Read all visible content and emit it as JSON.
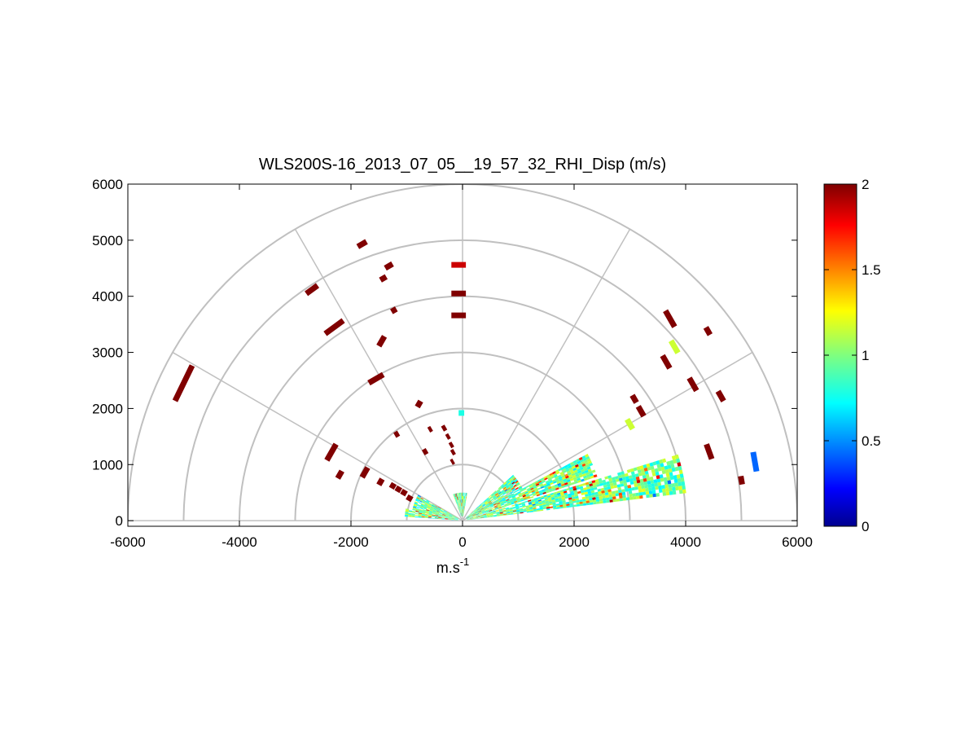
{
  "chart_data": {
    "type": "heatmap",
    "title": "WLS200S-16_2013_07_05__19_57_32_RHI_Disp (m/s)",
    "xlabel": "m.s",
    "xlabel_sup": "-1",
    "ylabel": "",
    "xlim": [
      -6000,
      6000
    ],
    "ylim": [
      -100,
      6000
    ],
    "xticks": [
      -6000,
      -4000,
      -2000,
      0,
      2000,
      4000,
      6000
    ],
    "yticks": [
      0,
      1000,
      2000,
      3000,
      4000,
      5000,
      6000
    ],
    "grid": {
      "range_rings_m": [
        1000,
        2000,
        3000,
        4000,
        5000,
        6000
      ],
      "spoke_angles_deg": [
        0,
        30,
        60,
        90,
        120,
        150,
        180
      ]
    },
    "colorbar": {
      "min": 0,
      "max": 2,
      "ticks": [
        "0",
        "0.5",
        "1",
        "1.5",
        "2"
      ],
      "colormap": "jet"
    },
    "scan": "RHI",
    "segments": [
      {
        "x": -5000,
        "y": 2450,
        "len": 700,
        "angle": 64,
        "v": 2
      },
      {
        "x": -2300,
        "y": 3450,
        "len": 400,
        "angle": 36,
        "v": 2
      },
      {
        "x": -2700,
        "y": 4120,
        "len": 250,
        "angle": 36,
        "v": 2
      },
      {
        "x": -1800,
        "y": 4930,
        "len": 180,
        "angle": 30,
        "v": 2
      },
      {
        "x": -1320,
        "y": 4540,
        "len": 150,
        "angle": 30,
        "v": 2
      },
      {
        "x": -1420,
        "y": 4320,
        "len": 120,
        "angle": 30,
        "v": 2
      },
      {
        "x": -1230,
        "y": 3750,
        "len": 100,
        "angle": 30,
        "v": 2
      },
      {
        "x": -1450,
        "y": 3200,
        "len": 200,
        "angle": 60,
        "v": 2
      },
      {
        "x": -1550,
        "y": 2530,
        "len": 300,
        "angle": 30,
        "v": 2
      },
      {
        "x": -2350,
        "y": 1220,
        "len": 330,
        "angle": 60,
        "v": 2
      },
      {
        "x": -2200,
        "y": 820,
        "len": 150,
        "angle": 60,
        "v": 2
      },
      {
        "x": -1750,
        "y": 860,
        "len": 200,
        "angle": 60,
        "v": 2
      },
      {
        "x": -1470,
        "y": 690,
        "len": 120,
        "angle": 60,
        "v": 2
      },
      {
        "x": -1250,
        "y": 620,
        "len": 100,
        "angle": 60,
        "v": 2
      },
      {
        "x": -1150,
        "y": 560,
        "len": 100,
        "angle": 60,
        "v": 2
      },
      {
        "x": -1050,
        "y": 500,
        "len": 100,
        "angle": 60,
        "v": 2
      },
      {
        "x": -950,
        "y": 400,
        "len": 100,
        "angle": 60,
        "v": 2
      },
      {
        "x": -780,
        "y": 2080,
        "len": 120,
        "angle": 60,
        "v": 2
      },
      {
        "x": -1180,
        "y": 1540,
        "len": 80,
        "angle": 30,
        "v": 2
      },
      {
        "x": -670,
        "y": 1230,
        "len": 80,
        "angle": 30,
        "v": 2
      },
      {
        "x": -580,
        "y": 1630,
        "len": 60,
        "angle": 30,
        "v": 2
      },
      {
        "x": -330,
        "y": 1650,
        "len": 70,
        "angle": 30,
        "v": 2
      },
      {
        "x": -260,
        "y": 1500,
        "len": 60,
        "angle": 30,
        "v": 2
      },
      {
        "x": -200,
        "y": 1350,
        "len": 60,
        "angle": 30,
        "v": 2
      },
      {
        "x": -170,
        "y": 1220,
        "len": 60,
        "angle": 30,
        "v": 2
      },
      {
        "x": -180,
        "y": 1050,
        "len": 50,
        "angle": 30,
        "v": 2
      },
      {
        "x": -70,
        "y": 4560,
        "len": 260,
        "angle": 0,
        "v": 1.85
      },
      {
        "x": -70,
        "y": 4050,
        "len": 260,
        "angle": 0,
        "v": 2
      },
      {
        "x": -70,
        "y": 3660,
        "len": 260,
        "angle": 0,
        "v": 2
      },
      {
        "x": -20,
        "y": 1920,
        "len": 100,
        "angle": 0,
        "v": 0.8
      },
      {
        "x": 3720,
        "y": 3600,
        "len": 330,
        "angle": 300,
        "v": 2
      },
      {
        "x": 4400,
        "y": 3380,
        "len": 150,
        "angle": 300,
        "v": 2
      },
      {
        "x": 3800,
        "y": 3100,
        "len": 250,
        "angle": 300,
        "v": 1.15
      },
      {
        "x": 3650,
        "y": 2830,
        "len": 260,
        "angle": 300,
        "v": 2
      },
      {
        "x": 4130,
        "y": 2430,
        "len": 260,
        "angle": 300,
        "v": 2
      },
      {
        "x": 4630,
        "y": 2220,
        "len": 200,
        "angle": 300,
        "v": 2
      },
      {
        "x": 3080,
        "y": 2170,
        "len": 150,
        "angle": 300,
        "v": 2
      },
      {
        "x": 3200,
        "y": 1950,
        "len": 200,
        "angle": 300,
        "v": 2
      },
      {
        "x": 3000,
        "y": 1720,
        "len": 200,
        "angle": 300,
        "v": 1.15
      },
      {
        "x": 4420,
        "y": 1230,
        "len": 280,
        "angle": 290,
        "v": 2
      },
      {
        "x": 5240,
        "y": 1050,
        "len": 350,
        "angle": 280,
        "v": 0.45
      },
      {
        "x": 5000,
        "y": 720,
        "len": 150,
        "angle": 280,
        "v": 2
      }
    ],
    "wedges": [
      {
        "a0": 7,
        "a1": 17,
        "rmax": 4000,
        "seed": 3
      },
      {
        "a0": 18,
        "a1": 28,
        "rmax": 2500,
        "seed": 7
      },
      {
        "a0": 28,
        "a1": 42,
        "rmax": 1200,
        "seed": 11
      },
      {
        "a0": 150,
        "a1": 168,
        "rmax": 900,
        "seed": 13
      },
      {
        "a0": 168,
        "a1": 176,
        "rmax": 1000,
        "seed": 17
      },
      {
        "a0": 80,
        "a1": 110,
        "rmax": 500,
        "seed": 19
      }
    ]
  }
}
